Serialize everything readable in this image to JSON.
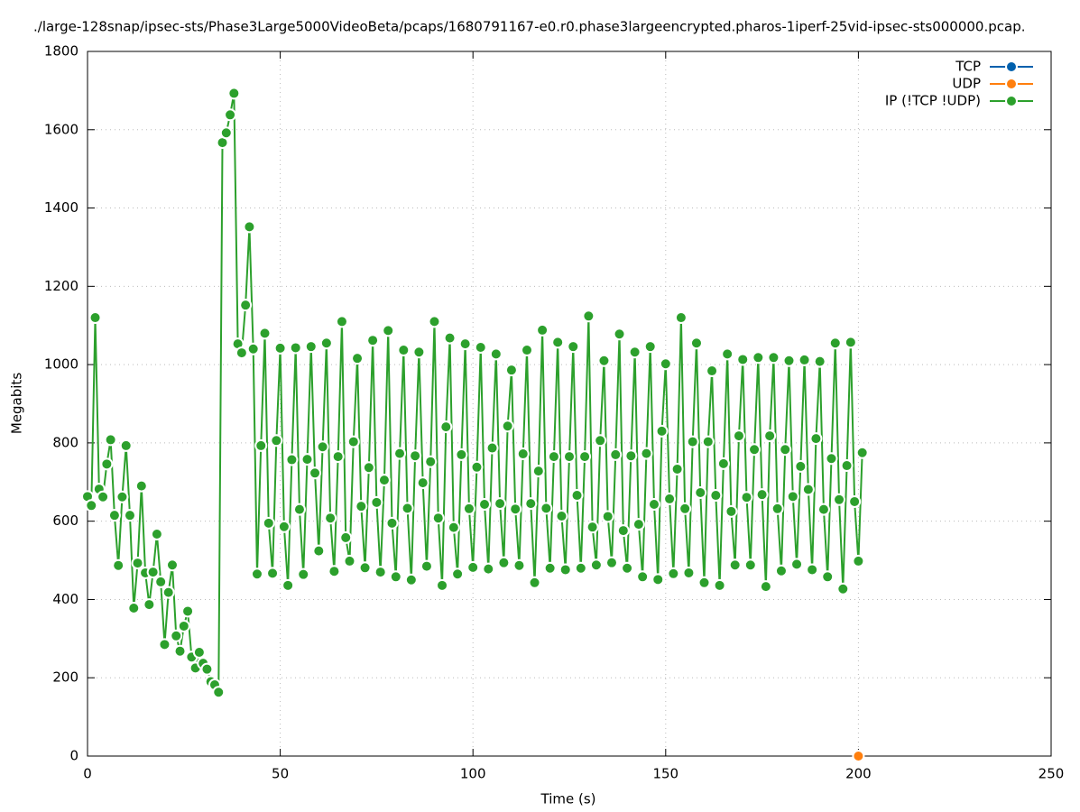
{
  "chart_data": {
    "type": "line",
    "title": "./large-128snap/ipsec-sts/Phase3Large5000VideoBeta/pcaps/1680791167-e0.r0.phase3largeencrypted.pharos-1iperf-25vid-ipsec-sts000000.pcap.",
    "x_label": "Time (s)",
    "y_label": "Megabits",
    "xlim": [
      0,
      250
    ],
    "xticks": [
      0,
      50,
      100,
      150,
      200,
      250
    ],
    "ylim": [
      0,
      1800
    ],
    "yticks": [
      0,
      200,
      400,
      600,
      800,
      1000,
      1200,
      1400,
      1600,
      1800
    ],
    "grid": true,
    "legend": "top-right",
    "series": [
      {
        "name": "TCP",
        "color": "#0060ad",
        "x": [],
        "values": []
      },
      {
        "name": "UDP",
        "color": "#ff7f0e",
        "x": [
          200
        ],
        "values": [
          0
        ]
      },
      {
        "name": "IP (!TCP  !UDP)",
        "color": "#2ca02c",
        "x": [
          0,
          1,
          2,
          3,
          4,
          5,
          6,
          7,
          8,
          9,
          10,
          11,
          12,
          13,
          14,
          15,
          16,
          17,
          18,
          19,
          20,
          21,
          22,
          23,
          24,
          25,
          26,
          27,
          28,
          29,
          30,
          31,
          32,
          33,
          34,
          35,
          36,
          37,
          38,
          39,
          40,
          41,
          42,
          43,
          44,
          45,
          46,
          47,
          48,
          49,
          50,
          51,
          52,
          53,
          54,
          55,
          56,
          57,
          58,
          59,
          60,
          61,
          62,
          63,
          64,
          65,
          66,
          67,
          68,
          69,
          70,
          71,
          72,
          73,
          74,
          75,
          76,
          77,
          78,
          79,
          80,
          81,
          82,
          83,
          84,
          85,
          86,
          87,
          88,
          89,
          90,
          91,
          92,
          93,
          94,
          95,
          96,
          97,
          98,
          99,
          100,
          101,
          102,
          103,
          104,
          105,
          106,
          107,
          108,
          109,
          110,
          111,
          112,
          113,
          114,
          115,
          116,
          117,
          118,
          119,
          120,
          121,
          122,
          123,
          124,
          125,
          126,
          127,
          128,
          129,
          130,
          131,
          132,
          133,
          134,
          135,
          136,
          137,
          138,
          139,
          140,
          141,
          142,
          143,
          144,
          145,
          146,
          147,
          148,
          149,
          150,
          151,
          152,
          153,
          154,
          155,
          156,
          157,
          158,
          159,
          160,
          161,
          162,
          163,
          164,
          165,
          166,
          167,
          168,
          169,
          170,
          171,
          172,
          173,
          174,
          175,
          176,
          177,
          178,
          179,
          180,
          181,
          182,
          183,
          184,
          185,
          186,
          187,
          188,
          189,
          190,
          191,
          192,
          193,
          194,
          195,
          196,
          197,
          198,
          199,
          200,
          201
        ],
        "values": [
          663,
          640,
          1120,
          682,
          662,
          746,
          808,
          615,
          487,
          662,
          793,
          615,
          378,
          493,
          690,
          468,
          387,
          470,
          567,
          445,
          285,
          418,
          488,
          307,
          268,
          332,
          370,
          253,
          225,
          265,
          237,
          222,
          190,
          182,
          163,
          1567,
          1592,
          1638,
          1693,
          1053,
          1030,
          1152,
          1352,
          1040,
          465,
          793,
          1080,
          595,
          467,
          806,
          1042,
          586,
          436,
          757,
          1043,
          630,
          464,
          758,
          1046,
          723,
          524,
          790,
          1055,
          608,
          472,
          765,
          1110,
          558,
          498,
          803,
          1016,
          638,
          481,
          737,
          1062,
          648,
          470,
          705,
          1087,
          595,
          458,
          773,
          1037,
          633,
          450,
          767,
          1032,
          698,
          485,
          752,
          1110,
          608,
          436,
          841,
          1068,
          584,
          465,
          770,
          1053,
          632,
          482,
          738,
          1044,
          643,
          478,
          787,
          1027,
          645,
          494,
          843,
          986,
          631,
          487,
          772,
          1037,
          645,
          443,
          728,
          1088,
          633,
          480,
          765,
          1057,
          613,
          476,
          765,
          1046,
          666,
          480,
          765,
          1124,
          585,
          488,
          806,
          1010,
          612,
          494,
          770,
          1078,
          576,
          480,
          767,
          1032,
          592,
          458,
          773,
          1046,
          643,
          451,
          830,
          1002,
          657,
          466,
          733,
          1120,
          632,
          468,
          803,
          1055,
          673,
          443,
          803,
          984,
          666,
          436,
          747,
          1027,
          625,
          488,
          818,
          1013,
          661,
          488,
          783,
          1018,
          668,
          433,
          818,
          1018,
          632,
          473,
          783,
          1010,
          663,
          490,
          740,
          1012,
          681,
          476,
          811,
          1008,
          630,
          458,
          760,
          1055,
          655,
          427,
          742,
          1057,
          650,
          498,
          775
        ]
      }
    ]
  }
}
